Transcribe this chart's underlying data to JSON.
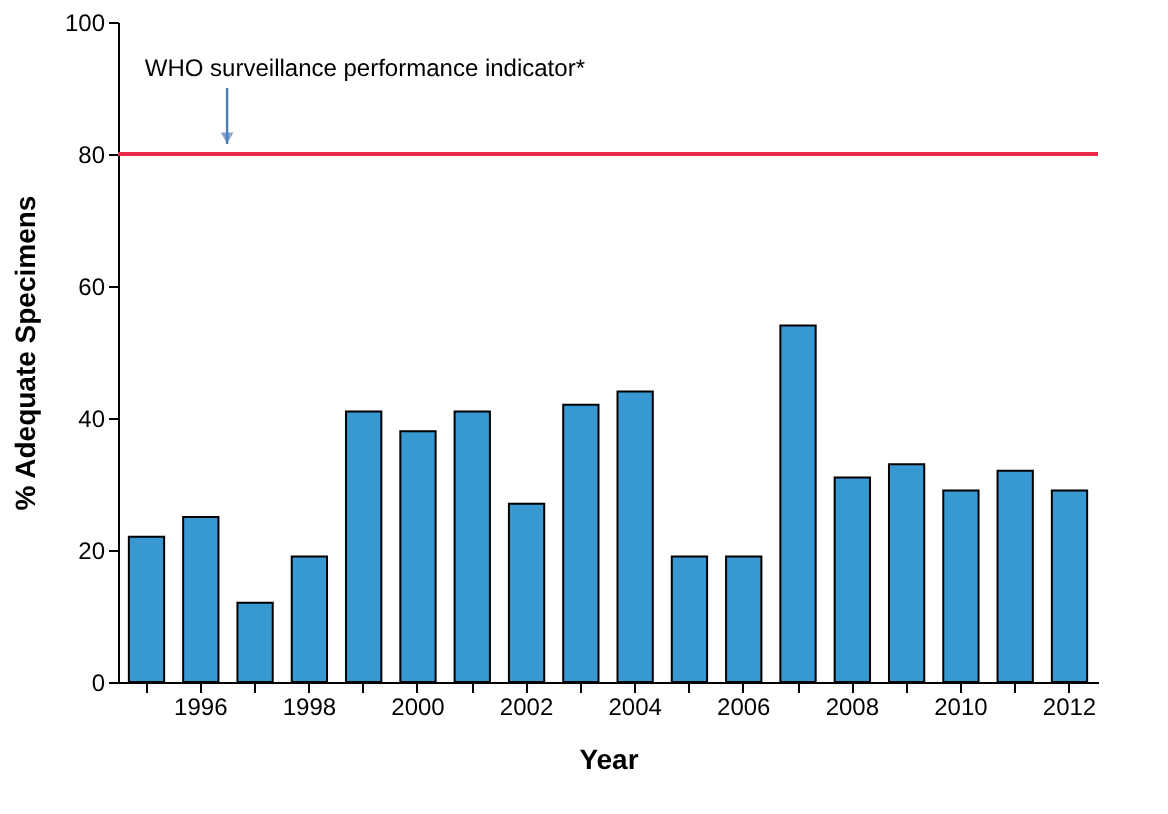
{
  "chart_data": {
    "type": "bar",
    "xlabel": "Year",
    "ylabel": "% Adequate Specimens",
    "categories": [
      null,
      "1996",
      null,
      "1998",
      null,
      "2000",
      null,
      "2002",
      null,
      "2004",
      null,
      "2006",
      null,
      "2008",
      null,
      "2010",
      null,
      "2012"
    ],
    "values": [
      22,
      25,
      12,
      19,
      41,
      38,
      41,
      27,
      42,
      44,
      19,
      19,
      54,
      31,
      33,
      29,
      32,
      29
    ],
    "color": "#3898d2",
    "ylim": [
      0,
      100
    ],
    "yticks": [
      0,
      20,
      40,
      60,
      80,
      100
    ],
    "grid": false,
    "ref_lines": [
      {
        "axis": "y",
        "value": 80,
        "label": "WHO surveillance performance indicator*",
        "color": "#e8294a",
        "line_style": "solid"
      }
    ]
  }
}
